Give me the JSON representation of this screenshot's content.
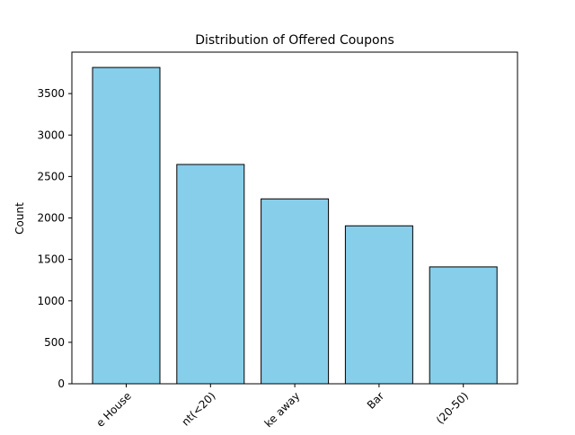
{
  "chart_data": {
    "type": "bar",
    "title": "Distribution of Offered Coupons",
    "xlabel": "",
    "ylabel": "Count",
    "categories": [
      "e House",
      "nt(<20)",
      "ke away",
      "Bar",
      "(20-50)"
    ],
    "values": [
      3815,
      2645,
      2230,
      1905,
      1410
    ],
    "ylim": [
      0,
      4000
    ],
    "yticks": [
      0,
      500,
      1000,
      1500,
      2000,
      2500,
      3000,
      3500
    ],
    "grid": false,
    "legend": "none",
    "bar_color": "#87CEEB",
    "bar_edge_color": "#000000"
  }
}
